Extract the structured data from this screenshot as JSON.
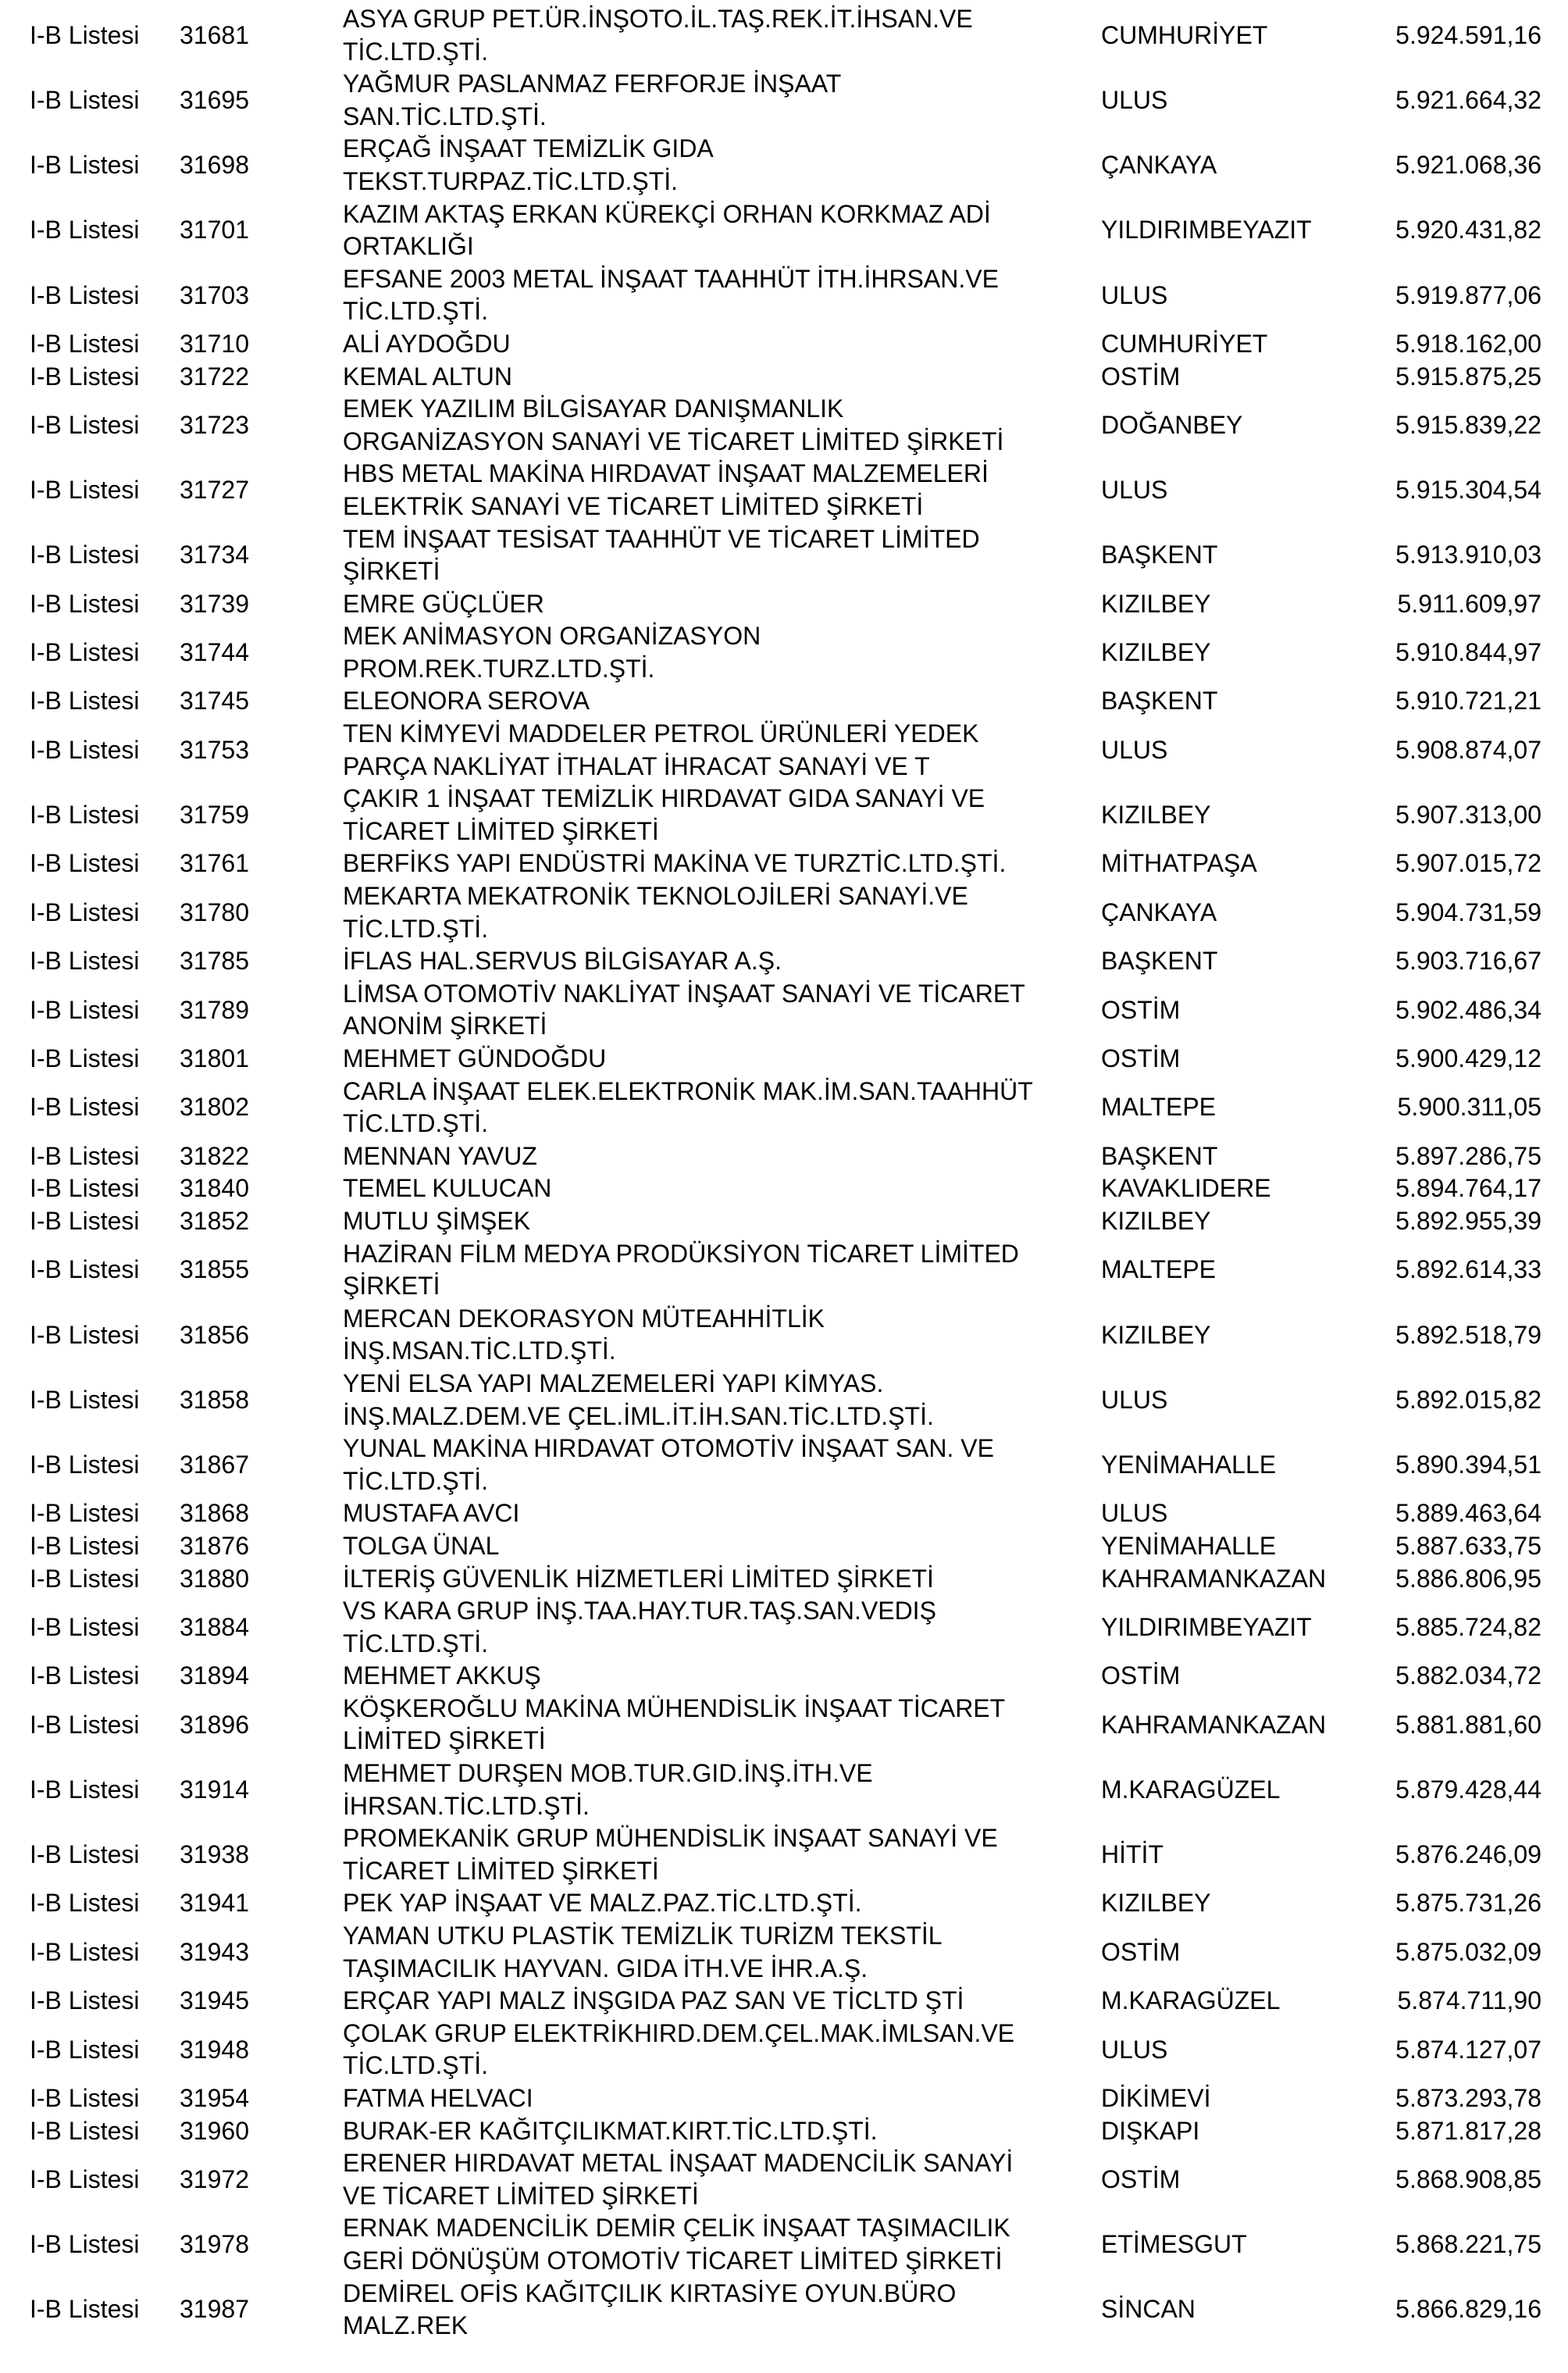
{
  "rows": [
    {
      "list": "I-B Listesi",
      "no": "31681",
      "name": [
        "ASYA GRUP PET.ÜR.İNŞOTO.İL.TAŞ.REK.İT.İHSAN.VE",
        "TİC.LTD.ŞTİ."
      ],
      "district": "CUMHURİYET",
      "amount": "5.924.591,16"
    },
    {
      "list": "I-B Listesi",
      "no": "31695",
      "name": [
        "YAĞMUR PASLANMAZ FERFORJE İNŞAAT",
        "SAN.TİC.LTD.ŞTİ."
      ],
      "district": "ULUS",
      "amount": "5.921.664,32"
    },
    {
      "list": "I-B Listesi",
      "no": "31698",
      "name": [
        "ERÇAĞ İNŞAAT TEMİZLİK GIDA",
        "TEKST.TURPAZ.TİC.LTD.ŞTİ."
      ],
      "district": "ÇANKAYA",
      "amount": "5.921.068,36"
    },
    {
      "list": "I-B Listesi",
      "no": "31701",
      "name": [
        "KAZIM AKTAŞ ERKAN KÜREKÇİ ORHAN KORKMAZ ADİ",
        "ORTAKLIĞI"
      ],
      "district": "YILDIRIMBEYAZIT",
      "amount": "5.920.431,82"
    },
    {
      "list": "I-B Listesi",
      "no": "31703",
      "name": [
        "EFSANE 2003 METAL İNŞAAT TAAHHÜT İTH.İHRSAN.VE",
        "TİC.LTD.ŞTİ."
      ],
      "district": "ULUS",
      "amount": "5.919.877,06"
    },
    {
      "list": "I-B Listesi",
      "no": "31710",
      "name": [
        "ALİ AYDOĞDU"
      ],
      "district": "CUMHURİYET",
      "amount": "5.918.162,00"
    },
    {
      "list": "I-B Listesi",
      "no": "31722",
      "name": [
        "KEMAL ALTUN"
      ],
      "district": "OSTİM",
      "amount": "5.915.875,25"
    },
    {
      "list": "I-B Listesi",
      "no": "31723",
      "name": [
        "EMEK YAZILIM BİLGİSAYAR DANIŞMANLIK",
        "ORGANİZASYON SANAYİ VE TİCARET LİMİTED ŞİRKETİ"
      ],
      "district": "DOĞANBEY",
      "amount": "5.915.839,22"
    },
    {
      "list": "I-B Listesi",
      "no": "31727",
      "name": [
        "HBS METAL MAKİNA HIRDAVAT İNŞAAT MALZEMELERİ",
        "ELEKTRİK SANAYİ VE TİCARET LİMİTED ŞİRKETİ"
      ],
      "district": "ULUS",
      "amount": "5.915.304,54"
    },
    {
      "list": "I-B Listesi",
      "no": "31734",
      "name": [
        "TEM İNŞAAT TESİSAT TAAHHÜT VE TİCARET LİMİTED",
        "ŞİRKETİ"
      ],
      "district": "BAŞKENT",
      "amount": "5.913.910,03"
    },
    {
      "list": "I-B Listesi",
      "no": "31739",
      "name": [
        "EMRE GÜÇLÜER"
      ],
      "district": "KIZILBEY",
      "amount": "5.911.609,97"
    },
    {
      "list": "I-B Listesi",
      "no": "31744",
      "name": [
        "MEK ANİMASYON ORGANİZASYON",
        "PROM.REK.TURZ.LTD.ŞTİ."
      ],
      "district": "KIZILBEY",
      "amount": "5.910.844,97"
    },
    {
      "list": "I-B Listesi",
      "no": "31745",
      "name": [
        "ELEONORA SEROVA"
      ],
      "district": "BAŞKENT",
      "amount": "5.910.721,21"
    },
    {
      "list": "I-B Listesi",
      "no": "31753",
      "name": [
        "TEN KİMYEVİ MADDELER PETROL ÜRÜNLERİ YEDEK",
        "PARÇA NAKLİYAT İTHALAT İHRACAT SANAYİ VE T"
      ],
      "district": "ULUS",
      "amount": "5.908.874,07"
    },
    {
      "list": "I-B Listesi",
      "no": "31759",
      "name": [
        "ÇAKIR 1 İNŞAAT TEMİZLİK HIRDAVAT GIDA SANAYİ VE",
        "TİCARET LİMİTED ŞİRKETİ"
      ],
      "district": "KIZILBEY",
      "amount": "5.907.313,00"
    },
    {
      "list": "I-B Listesi",
      "no": "31761",
      "name": [
        "BERFİKS YAPI ENDÜSTRİ MAKİNA VE TURZTİC.LTD.ŞTİ."
      ],
      "district": "MİTHATPAŞA",
      "amount": "5.907.015,72"
    },
    {
      "list": "I-B Listesi",
      "no": "31780",
      "name": [
        "MEKARTA MEKATRONİK TEKNOLOJİLERİ SANAYİ.VE",
        "TİC.LTD.ŞTİ."
      ],
      "district": "ÇANKAYA",
      "amount": "5.904.731,59"
    },
    {
      "list": "I-B Listesi",
      "no": "31785",
      "name": [
        "İFLAS HAL.SERVUS BİLGİSAYAR A.Ş."
      ],
      "district": "BAŞKENT",
      "amount": "5.903.716,67"
    },
    {
      "list": "I-B Listesi",
      "no": "31789",
      "name": [
        "LİMSA OTOMOTİV NAKLİYAT İNŞAAT SANAYİ VE TİCARET",
        "ANONİM ŞİRKETİ"
      ],
      "district": "OSTİM",
      "amount": "5.902.486,34"
    },
    {
      "list": "I-B Listesi",
      "no": "31801",
      "name": [
        "MEHMET GÜNDOĞDU"
      ],
      "district": "OSTİM",
      "amount": "5.900.429,12"
    },
    {
      "list": "I-B Listesi",
      "no": "31802",
      "name": [
        "CARLA İNŞAAT ELEK.ELEKTRONİK MAK.İM.SAN.TAAHHÜT",
        "TİC.LTD.ŞTİ."
      ],
      "district": "MALTEPE",
      "amount": "5.900.311,05"
    },
    {
      "list": "I-B Listesi",
      "no": "31822",
      "name": [
        "MENNAN YAVUZ"
      ],
      "district": "BAŞKENT",
      "amount": "5.897.286,75"
    },
    {
      "list": "I-B Listesi",
      "no": "31840",
      "name": [
        "TEMEL KULUCAN"
      ],
      "district": "KAVAKLIDERE",
      "amount": "5.894.764,17"
    },
    {
      "list": "I-B Listesi",
      "no": "31852",
      "name": [
        "MUTLU ŞİMŞEK"
      ],
      "district": "KIZILBEY",
      "amount": "5.892.955,39"
    },
    {
      "list": "I-B Listesi",
      "no": "31855",
      "name": [
        "HAZİRAN FİLM MEDYA PRODÜKSİYON TİCARET LİMİTED",
        "ŞİRKETİ"
      ],
      "district": "MALTEPE",
      "amount": "5.892.614,33"
    },
    {
      "list": "I-B Listesi",
      "no": "31856",
      "name": [
        "MERCAN DEKORASYON MÜTEAHHİTLİK",
        "İNŞ.MSAN.TİC.LTD.ŞTİ."
      ],
      "district": "KIZILBEY",
      "amount": "5.892.518,79"
    },
    {
      "list": "I-B Listesi",
      "no": "31858",
      "name": [
        "YENİ ELSA YAPI MALZEMELERİ YAPI KİMYAS.",
        "İNŞ.MALZ.DEM.VE ÇEL.İML.İT.İH.SAN.TİC.LTD.ŞTİ."
      ],
      "district": "ULUS",
      "amount": "5.892.015,82"
    },
    {
      "list": "I-B Listesi",
      "no": "31867",
      "name": [
        "YUNAL MAKİNA HIRDAVAT OTOMOTİV İNŞAAT SAN. VE",
        "TİC.LTD.ŞTİ."
      ],
      "district": "YENİMAHALLE",
      "amount": "5.890.394,51"
    },
    {
      "list": "I-B Listesi",
      "no": "31868",
      "name": [
        "MUSTAFA AVCI"
      ],
      "district": "ULUS",
      "amount": "5.889.463,64"
    },
    {
      "list": "I-B Listesi",
      "no": "31876",
      "name": [
        "TOLGA ÜNAL"
      ],
      "district": "YENİMAHALLE",
      "amount": "5.887.633,75"
    },
    {
      "list": "I-B Listesi",
      "no": "31880",
      "name": [
        "İLTERİŞ GÜVENLİK HİZMETLERİ LİMİTED ŞİRKETİ"
      ],
      "district": "KAHRAMANKAZAN",
      "amount": "5.886.806,95"
    },
    {
      "list": "I-B Listesi",
      "no": "31884",
      "name": [
        "VS KARA GRUP İNŞ.TAA.HAY.TUR.TAŞ.SAN.VEDIŞ",
        "TİC.LTD.ŞTİ."
      ],
      "district": "YILDIRIMBEYAZIT",
      "amount": "5.885.724,82"
    },
    {
      "list": "I-B Listesi",
      "no": "31894",
      "name": [
        "MEHMET AKKUŞ"
      ],
      "district": "OSTİM",
      "amount": "5.882.034,72"
    },
    {
      "list": "I-B Listesi",
      "no": "31896",
      "name": [
        "KÖŞKEROĞLU MAKİNA MÜHENDİSLİK İNŞAAT TİCARET",
        "LİMİTED ŞİRKETİ"
      ],
      "district": "KAHRAMANKAZAN",
      "amount": "5.881.881,60"
    },
    {
      "list": "I-B Listesi",
      "no": "31914",
      "name": [
        "MEHMET DURŞEN MOB.TUR.GID.İNŞ.İTH.VE",
        "İHRSAN.TİC.LTD.ŞTİ."
      ],
      "district": "M.KARAGÜZEL",
      "amount": "5.879.428,44"
    },
    {
      "list": "I-B Listesi",
      "no": "31938",
      "name": [
        "PROMEKANİK GRUP MÜHENDİSLİK İNŞAAT SANAYİ VE",
        "TİCARET LİMİTED ŞİRKETİ"
      ],
      "district": "HİTİT",
      "amount": "5.876.246,09"
    },
    {
      "list": "I-B Listesi",
      "no": "31941",
      "name": [
        "PEK YAP İNŞAAT VE MALZ.PAZ.TİC.LTD.ŞTİ."
      ],
      "district": "KIZILBEY",
      "amount": "5.875.731,26"
    },
    {
      "list": "I-B Listesi",
      "no": "31943",
      "name": [
        "YAMAN UTKU PLASTİK TEMİZLİK TURİZM TEKSTİL",
        "TAŞIMACILIK HAYVAN. GIDA İTH.VE İHR.A.Ş."
      ],
      "district": "OSTİM",
      "amount": "5.875.032,09"
    },
    {
      "list": "I-B Listesi",
      "no": "31945",
      "name": [
        "ERÇAR YAPI MALZ İNŞGIDA PAZ SAN VE TİCLTD ŞTİ"
      ],
      "district": "M.KARAGÜZEL",
      "amount": "5.874.711,90"
    },
    {
      "list": "I-B Listesi",
      "no": "31948",
      "name": [
        "ÇOLAK GRUP ELEKTRİKHIRD.DEM.ÇEL.MAK.İMLSAN.VE",
        "TİC.LTD.ŞTİ."
      ],
      "district": "ULUS",
      "amount": "5.874.127,07"
    },
    {
      "list": "I-B Listesi",
      "no": "31954",
      "name": [
        "FATMA HELVACI"
      ],
      "district": "DİKİMEVİ",
      "amount": "5.873.293,78"
    },
    {
      "list": "I-B Listesi",
      "no": "31960",
      "name": [
        "BURAK-ER KAĞITÇILIKMAT.KIRT.TİC.LTD.ŞTİ."
      ],
      "district": "DIŞKAPI",
      "amount": "5.871.817,28"
    },
    {
      "list": "I-B Listesi",
      "no": "31972",
      "name": [
        "ERENER HIRDAVAT METAL İNŞAAT MADENCİLİK SANAYİ",
        "VE TİCARET LİMİTED ŞİRKETİ"
      ],
      "district": "OSTİM",
      "amount": "5.868.908,85"
    },
    {
      "list": "I-B Listesi",
      "no": "31978",
      "name": [
        "ERNAK MADENCİLİK DEMİR ÇELİK İNŞAAT TAŞIMACILIK",
        "GERİ DÖNÜŞÜM OTOMOTİV TİCARET LİMİTED ŞİRKETİ"
      ],
      "district": "ETİMESGUT",
      "amount": "5.868.221,75"
    },
    {
      "list": "I-B Listesi",
      "no": "31987",
      "name": [
        "DEMİREL OFİS KAĞITÇILIK KIRTASİYE OYUN.BÜRO",
        "MALZ.REK"
      ],
      "district": "SİNCAN",
      "amount": "5.866.829,16"
    }
  ]
}
